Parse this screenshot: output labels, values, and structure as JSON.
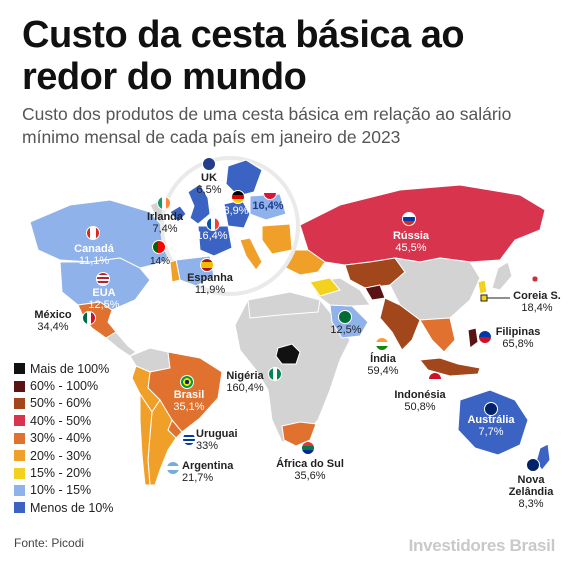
{
  "title": "Custo da cesta básica ao redor do mundo",
  "subtitle": "Custo dos produtos de uma cesta básica em relação ao salário mínimo mensal de cada país em janeiro de 2023",
  "legend": [
    {
      "label": "Mais de 100%",
      "color": "#111111"
    },
    {
      "label": "60% - 100%",
      "color": "#5a1212"
    },
    {
      "label": "50% - 60%",
      "color": "#a2461c"
    },
    {
      "label": "40% - 50%",
      "color": "#d8344e"
    },
    {
      "label": "30% - 40%",
      "color": "#e0712f"
    },
    {
      "label": "20% - 30%",
      "color": "#f0a028"
    },
    {
      "label": "15% - 20%",
      "color": "#f2d21c"
    },
    {
      "label": "10% - 15%",
      "color": "#90b2ea"
    },
    {
      "label": "Menos de 10%",
      "color": "#3a63c4"
    }
  ],
  "countries": {
    "uk": {
      "name": "UK",
      "value": "6,5%"
    },
    "irlanda": {
      "name": "Irlanda",
      "value": "7,4%"
    },
    "espanha": {
      "name": "Espanha",
      "value": "11,9%"
    },
    "portugal": {
      "value": "14%"
    },
    "germany": {
      "value": "8,9%"
    },
    "poland": {
      "value": "16,4%"
    },
    "france": {
      "value": "16,4%"
    },
    "canada": {
      "name": "Canadá",
      "value": "11,1%"
    },
    "eua": {
      "name": "EUA",
      "value": "12,5%"
    },
    "mexico": {
      "name": "México",
      "value": "34,4%"
    },
    "brasil": {
      "name": "Brasil",
      "value": "35,1%"
    },
    "uruguai": {
      "name": "Uruguai",
      "value": "33%"
    },
    "argentina": {
      "name": "Argentina",
      "value": "21,7%"
    },
    "nigeria": {
      "name": "Nigéria",
      "value": "160,4%"
    },
    "africa_sul": {
      "name": "África do Sul",
      "value": "35,6%"
    },
    "saudi": {
      "value": "12,5%"
    },
    "russia": {
      "name": "Rússia",
      "value": "45,5%"
    },
    "india": {
      "name": "Índia",
      "value": "59,4%"
    },
    "indonesia": {
      "name": "Indonésia",
      "value": "50,8%"
    },
    "filipinas": {
      "name": "Filipinas",
      "value": "65,8%"
    },
    "coreia": {
      "name": "Coreia S.",
      "value": "18,4%"
    },
    "australia": {
      "name": "Austrália",
      "value": "7,7%"
    },
    "nova_zelandia": {
      "name": "Nova Zelândia",
      "value": "8,3%"
    }
  },
  "source": "Fonte: Picodi",
  "brand": "Investidores Brasil",
  "colors": {
    "gray": "#d3d3d3",
    "ocean": "#ffffff"
  }
}
